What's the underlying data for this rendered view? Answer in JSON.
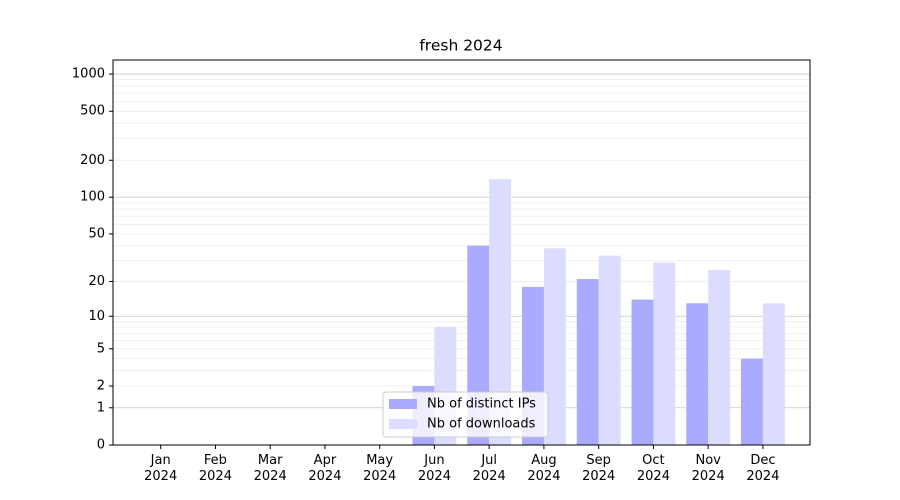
{
  "chart_data": {
    "type": "bar",
    "title": "fresh 2024",
    "categories": [
      "Jan 2024",
      "Feb 2024",
      "Mar 2024",
      "Apr 2024",
      "May 2024",
      "Jun 2024",
      "Jul 2024",
      "Aug 2024",
      "Sep 2024",
      "Oct 2024",
      "Nov 2024",
      "Dec 2024"
    ],
    "series": [
      {
        "name": "Nb of distinct IPs",
        "color": "#aaaaff",
        "values": [
          0,
          0,
          0,
          0,
          0,
          2,
          40,
          18,
          21,
          14,
          13,
          4
        ]
      },
      {
        "name": "Nb of downloads",
        "color": "#dcdcff",
        "values": [
          0,
          0,
          0,
          0,
          0,
          8,
          140,
          38,
          33,
          29,
          25,
          13
        ]
      }
    ],
    "yscale": "log1p",
    "ylim": [
      0,
      1300
    ],
    "yticks": [
      0,
      1,
      2,
      5,
      10,
      20,
      50,
      100,
      200,
      500,
      1000
    ],
    "minor_yticks": [
      3,
      4,
      6,
      7,
      8,
      9,
      30,
      40,
      60,
      70,
      80,
      90,
      300,
      400,
      600,
      700,
      800,
      900
    ],
    "grid": true,
    "legend": "lower center"
  }
}
